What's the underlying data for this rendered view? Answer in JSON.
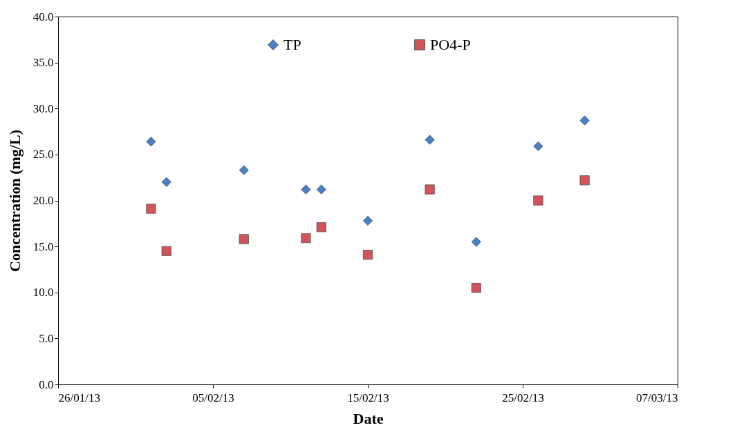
{
  "chart_data": {
    "type": "scatter",
    "xlabel": "Date",
    "ylabel": "Concentration (mg/L)",
    "x": [
      "2013-02-01",
      "2013-02-02",
      "2013-02-07",
      "2013-02-11",
      "2013-02-12",
      "2013-02-15",
      "2013-02-19",
      "2013-02-22",
      "2013-02-26",
      "2013-03-01"
    ],
    "series": [
      {
        "name": "TP",
        "color": "#4a80c8",
        "marker": "diamond",
        "values": [
          26.4,
          22.0,
          23.3,
          21.2,
          21.2,
          17.8,
          26.6,
          15.5,
          25.9,
          28.7
        ]
      },
      {
        "name": "PO4-P",
        "color": "#d0545a",
        "marker": "square",
        "values": [
          19.1,
          14.5,
          15.8,
          15.9,
          17.1,
          14.1,
          21.2,
          10.5,
          20.0,
          22.2
        ]
      }
    ],
    "xlim": [
      "2013-01-26",
      "2013-03-07"
    ],
    "xticks": [
      {
        "value": "2013-01-26",
        "label": "26/01/13"
      },
      {
        "value": "2013-02-05",
        "label": "05/02/13"
      },
      {
        "value": "2013-02-15",
        "label": "15/02/13"
      },
      {
        "value": "2013-02-25",
        "label": "25/02/13"
      },
      {
        "value": "2013-03-07",
        "label": "07/03/13"
      }
    ],
    "ylim": [
      0,
      40
    ],
    "yticks": [
      {
        "value": 0,
        "label": "0.0"
      },
      {
        "value": 5,
        "label": "5.0"
      },
      {
        "value": 10,
        "label": "10.0"
      },
      {
        "value": 15,
        "label": "15.0"
      },
      {
        "value": 20,
        "label": "20.0"
      },
      {
        "value": 25,
        "label": "25.0"
      },
      {
        "value": 30,
        "label": "30.0"
      },
      {
        "value": 35,
        "label": "35.0"
      },
      {
        "value": 40,
        "label": "40.0"
      }
    ],
    "grid": false,
    "legend": "top"
  }
}
